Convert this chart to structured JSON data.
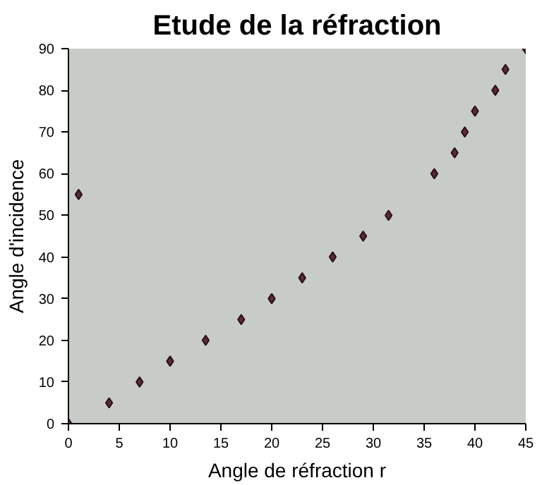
{
  "chart_data": {
    "type": "scatter",
    "title": "Etude de la réfraction",
    "xlabel": "Angle de réfraction r",
    "ylabel": "Angle d'incidence",
    "x": [
      0,
      1,
      4,
      7,
      10,
      13.5,
      17,
      20,
      23,
      26,
      29,
      31.5,
      36,
      38,
      39,
      40,
      42,
      43,
      45
    ],
    "series": [
      {
        "color": "#5a2a38",
        "values": [
          0,
          55,
          5,
          10,
          15,
          20,
          25,
          30,
          35,
          40,
          45,
          50,
          60,
          65,
          70,
          75,
          80,
          85,
          90
        ]
      }
    ],
    "xlim": [
      0,
      45
    ],
    "ylim": [
      0,
      90
    ],
    "xticks": [
      0,
      5,
      10,
      15,
      20,
      25,
      30,
      35,
      40,
      45
    ],
    "yticks": [
      0,
      10,
      20,
      30,
      40,
      50,
      60,
      70,
      80,
      90
    ],
    "marker": "diamond"
  }
}
